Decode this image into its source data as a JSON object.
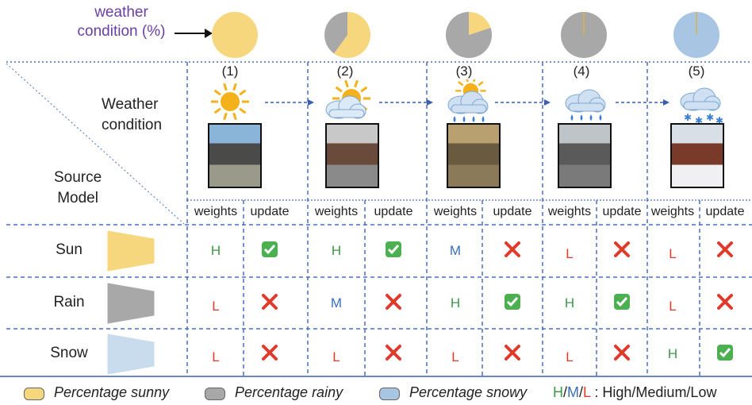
{
  "colors": {
    "sunny": "#f7d77e",
    "rainy": "#a8a8a8",
    "snowy": "#a8c6e4",
    "high": "#3a9a4a",
    "medium": "#3b6fb6",
    "low": "#e03a2a",
    "dash": "#4a6fc0",
    "title": "#6b3ea3"
  },
  "weather_label": "weather condition (%)",
  "weather_label_lines": [
    "weather",
    "condition (%)"
  ],
  "row_header_weather": [
    "Weather",
    "condition"
  ],
  "row_header_source": [
    "Source",
    "Model"
  ],
  "columns": [
    {
      "num": "(1)",
      "icon": "sun-icon",
      "pie": {
        "sunny": 100,
        "rainy": 0,
        "snowy": 0
      }
    },
    {
      "num": "(2)",
      "icon": "sun-cloud-icon",
      "pie": {
        "sunny": 60,
        "rainy": 40,
        "snowy": 0
      }
    },
    {
      "num": "(3)",
      "icon": "rain-cloud-sun-icon",
      "pie": {
        "sunny": 20,
        "rainy": 80,
        "snowy": 0
      }
    },
    {
      "num": "(4)",
      "icon": "rain-cloud-icon",
      "pie": {
        "sunny": 0,
        "rainy": 100,
        "snowy": 0
      }
    },
    {
      "num": "(5)",
      "icon": "snow-cloud-icon",
      "pie": {
        "sunny": 0,
        "rainy": 0,
        "snowy": 100
      }
    }
  ],
  "sub_headers": {
    "weights": "weights",
    "update": "update"
  },
  "rows": [
    {
      "name": "Sun",
      "color": "#f7d77e",
      "cells": [
        {
          "w": "H",
          "u": "check"
        },
        {
          "w": "H",
          "u": "check"
        },
        {
          "w": "M",
          "u": "cross"
        },
        {
          "w": "L",
          "u": "cross"
        },
        {
          "w": "L",
          "u": "cross"
        }
      ]
    },
    {
      "name": "Rain",
      "color": "#a8a8a8",
      "cells": [
        {
          "w": "L",
          "u": "cross"
        },
        {
          "w": "M",
          "u": "cross"
        },
        {
          "w": "H",
          "u": "check"
        },
        {
          "w": "H",
          "u": "check"
        },
        {
          "w": "L",
          "u": "cross"
        }
      ]
    },
    {
      "name": "Snow",
      "color": "#c9dcee",
      "cells": [
        {
          "w": "L",
          "u": "cross"
        },
        {
          "w": "L",
          "u": "cross"
        },
        {
          "w": "L",
          "u": "cross"
        },
        {
          "w": "L",
          "u": "cross"
        },
        {
          "w": "H",
          "u": "check"
        }
      ]
    }
  ],
  "legend": {
    "sunny": "Percentage sunny",
    "rainy": "Percentage rainy",
    "snowy": "Percentage snowy",
    "key_h": "H",
    "key_m": "M",
    "key_l": "L",
    "key_sep": "/",
    "key_desc": ": High/Medium/Low"
  }
}
